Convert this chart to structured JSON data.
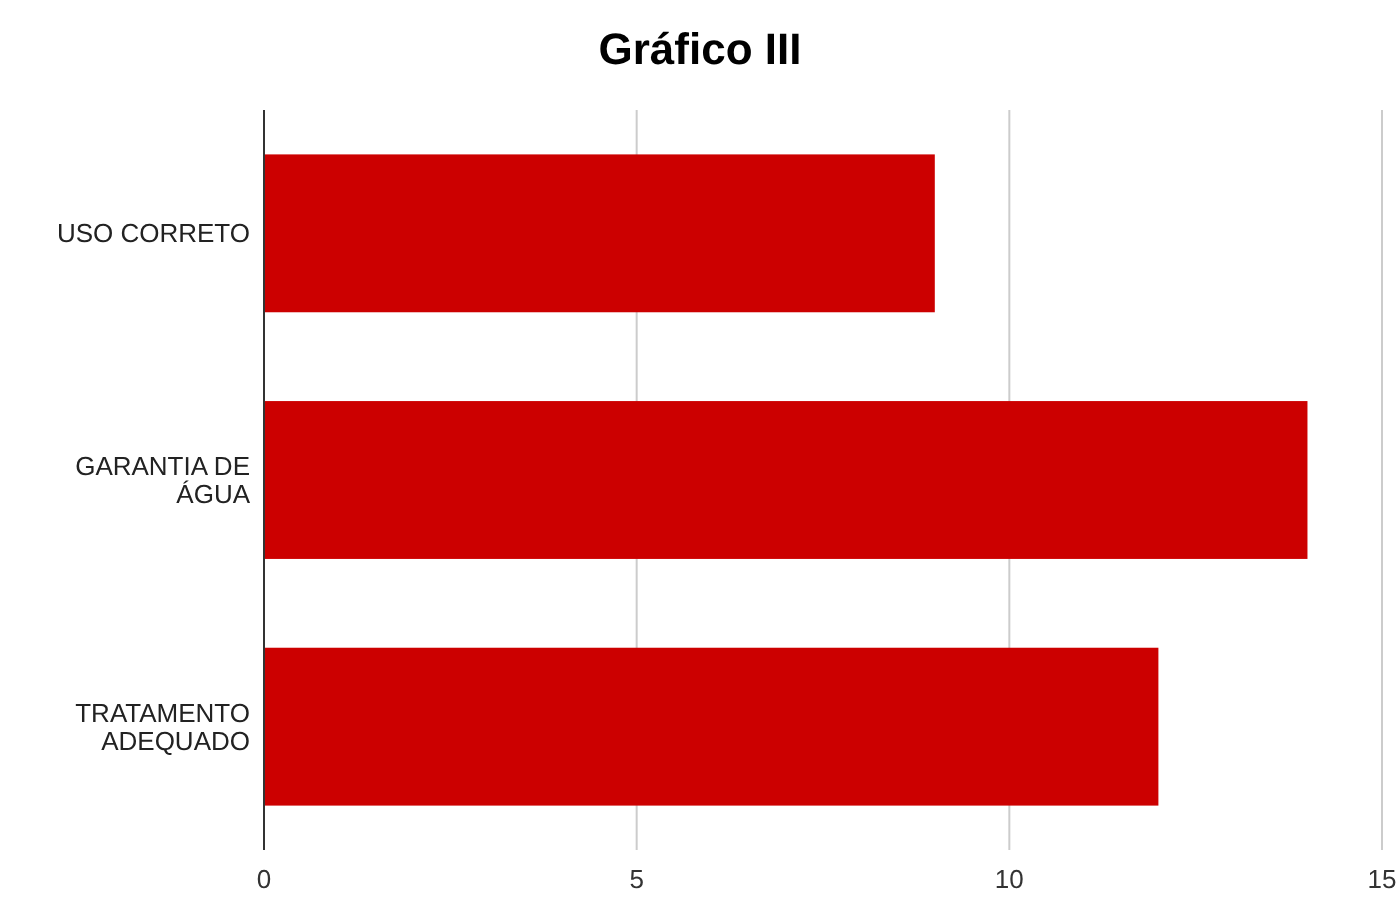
{
  "chart_data": {
    "type": "bar",
    "title": "Gráfico III",
    "orientation": "horizontal",
    "categories": [
      "USO CORRETO",
      "GARANTIA DE ÁGUA",
      "TRATAMENTO ADEQUADO"
    ],
    "values": [
      9,
      14,
      12
    ],
    "color": "#cc0000",
    "xlim": [
      0,
      15
    ],
    "xticks": [
      0,
      5,
      10,
      15
    ],
    "grid": "x"
  }
}
